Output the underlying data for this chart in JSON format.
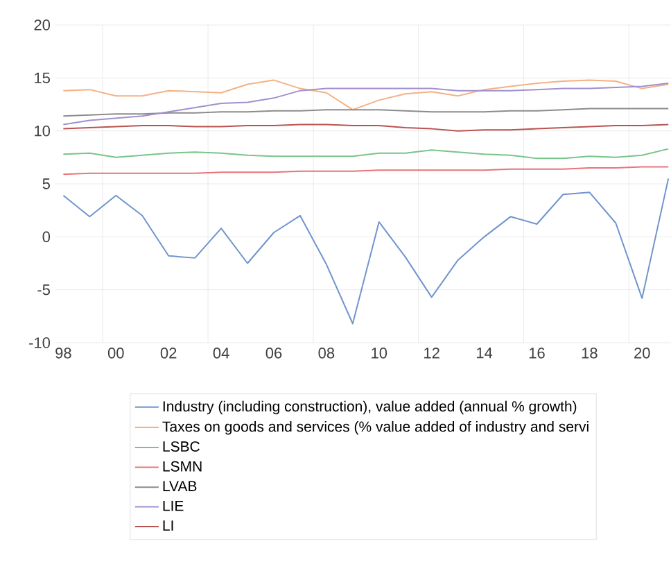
{
  "chart_data": {
    "type": "line",
    "categories": [
      "98",
      null,
      "00",
      null,
      "02",
      null,
      "04",
      null,
      "06",
      null,
      "08",
      null,
      "10",
      null,
      "12",
      null,
      "14",
      null,
      "16",
      null,
      "18",
      null,
      "20",
      null
    ],
    "ylim": [
      -10,
      20
    ],
    "yticks": [
      -10,
      -5,
      0,
      5,
      10,
      15,
      20
    ],
    "grid": true,
    "legend": "bottom",
    "series": [
      {
        "name": "Industry (including construction), value added (annual % growth)",
        "color": "#7094cd",
        "values": [
          3.9,
          1.9,
          3.9,
          2.0,
          -1.8,
          -2.0,
          0.8,
          -2.5,
          0.4,
          2.0,
          -2.6,
          -8.2,
          1.4,
          -1.9,
          -5.7,
          -2.2,
          0.0,
          1.9,
          1.2,
          4.0,
          4.2,
          1.3,
          -5.8,
          5.5
        ]
      },
      {
        "name": "Taxes on goods and services (% value added of industry and servi",
        "color": "#f4b183",
        "values": [
          13.8,
          13.9,
          13.3,
          13.3,
          13.8,
          13.7,
          13.6,
          14.4,
          14.8,
          14.0,
          13.6,
          12.0,
          12.9,
          13.5,
          13.7,
          13.3,
          13.9,
          14.2,
          14.5,
          14.7,
          14.8,
          14.7,
          14.0,
          14.4
        ]
      },
      {
        "name": "LSBC",
        "color": "#78c48a",
        "values": [
          7.8,
          7.9,
          7.5,
          7.7,
          7.9,
          8.0,
          7.9,
          7.7,
          7.6,
          7.6,
          7.6,
          7.6,
          7.9,
          7.9,
          8.2,
          8.0,
          7.8,
          7.7,
          7.4,
          7.4,
          7.6,
          7.5,
          7.7,
          8.3
        ]
      },
      {
        "name": "LSMN",
        "color": "#e8747a",
        "values": [
          5.9,
          6.0,
          6.0,
          6.0,
          6.0,
          6.0,
          6.1,
          6.1,
          6.1,
          6.2,
          6.2,
          6.2,
          6.3,
          6.3,
          6.3,
          6.3,
          6.3,
          6.4,
          6.4,
          6.4,
          6.5,
          6.5,
          6.6,
          6.6
        ]
      },
      {
        "name": "LVAB",
        "color": "#8c8c8c",
        "values": [
          11.4,
          11.5,
          11.6,
          11.6,
          11.7,
          11.7,
          11.8,
          11.8,
          11.9,
          11.9,
          12.0,
          12.0,
          12.0,
          11.9,
          11.8,
          11.8,
          11.8,
          11.9,
          11.9,
          12.0,
          12.1,
          12.1,
          12.1,
          12.1
        ]
      },
      {
        "name": "LIE",
        "color": "#a28fcf",
        "values": [
          10.6,
          11.0,
          11.2,
          11.4,
          11.8,
          12.2,
          12.6,
          12.7,
          13.1,
          13.8,
          14.0,
          14.0,
          14.0,
          14.0,
          14.0,
          13.8,
          13.8,
          13.8,
          13.9,
          14.0,
          14.0,
          14.1,
          14.2,
          14.5
        ]
      },
      {
        "name": "LI",
        "color": "#b85450",
        "values": [
          10.2,
          10.3,
          10.4,
          10.5,
          10.5,
          10.4,
          10.4,
          10.5,
          10.5,
          10.6,
          10.6,
          10.5,
          10.5,
          10.3,
          10.2,
          10.0,
          10.1,
          10.1,
          10.2,
          10.3,
          10.4,
          10.5,
          10.5,
          10.6
        ]
      }
    ]
  }
}
